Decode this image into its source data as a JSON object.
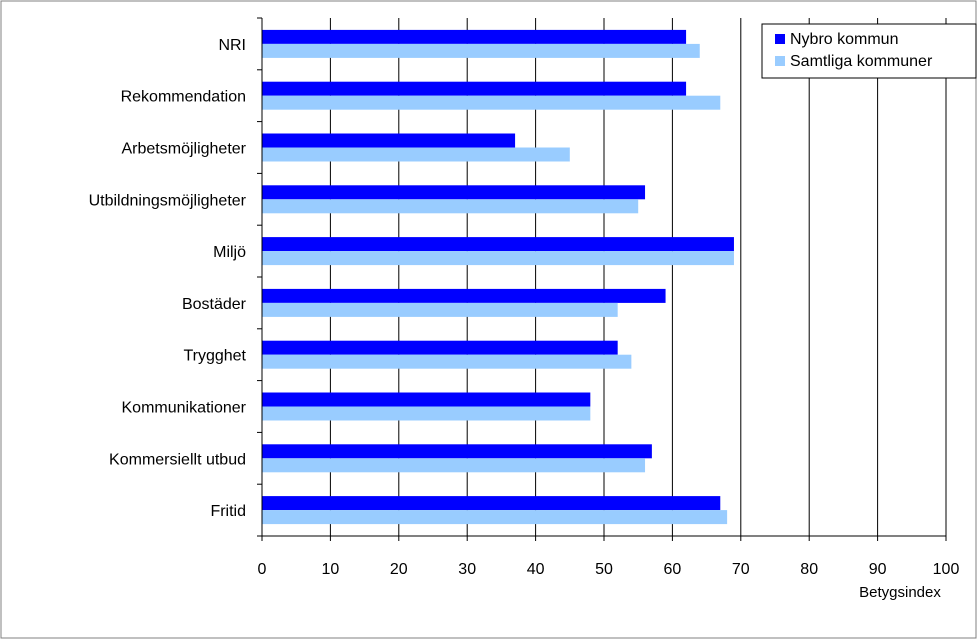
{
  "chart_data": {
    "type": "bar",
    "orientation": "horizontal",
    "title": "",
    "xlabel": "Betygsindex",
    "ylabel": "",
    "xlim": [
      0,
      100
    ],
    "x_ticks": [
      0,
      10,
      20,
      30,
      40,
      50,
      60,
      70,
      80,
      90,
      100
    ],
    "grid": true,
    "legend_position": "top-right",
    "categories": [
      "NRI",
      "Rekommendation",
      "Arbetsmöjligheter",
      "Utbildningsmöjligheter",
      "Miljö",
      "Bostäder",
      "Trygghet",
      "Kommunikationer",
      "Kommersiellt utbud",
      "Fritid"
    ],
    "series": [
      {
        "name": "Nybro kommun",
        "color": "#0000ff",
        "values": [
          62,
          62,
          37,
          56,
          69,
          59,
          52,
          48,
          57,
          67
        ]
      },
      {
        "name": "Samtliga kommuner",
        "color": "#99ccff",
        "values": [
          64,
          67,
          45,
          55,
          69,
          52,
          54,
          48,
          56,
          68
        ]
      }
    ]
  }
}
